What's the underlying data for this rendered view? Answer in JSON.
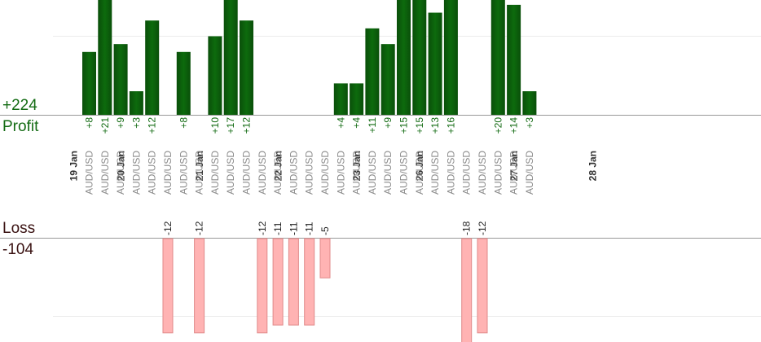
{
  "summary": {
    "profit_total": "+224",
    "profit_label": "Profit",
    "loss_label": "Loss",
    "loss_total": "-104"
  },
  "colors": {
    "profit_bar": "#0d6b0d",
    "profit_bar_dark": "#0a4f0a",
    "profit_text": "#136b13",
    "loss_bar": "#ffb3b3",
    "loss_bar_edge": "#e08a8a",
    "loss_text": "#222222",
    "date_text": "#333333",
    "pair_text": "#8a8a8a",
    "axis": "#999999",
    "grid": "#ececec"
  },
  "chart_data": {
    "type": "bar",
    "note_units": "pips",
    "dates": [
      {
        "label": "19 Jan",
        "slot": 0
      },
      {
        "label": "20 Jan",
        "slot": 3
      },
      {
        "label": "21 Jan",
        "slot": 8
      },
      {
        "label": "22 Jan",
        "slot": 13
      },
      {
        "label": "23 Jan",
        "slot": 18
      },
      {
        "label": "26 Jan",
        "slot": 22
      },
      {
        "label": "27 Jan",
        "slot": 28
      },
      {
        "label": "28 Jan",
        "slot": 33
      }
    ],
    "trades": [
      {
        "pair": "AUD/USD",
        "value": 8
      },
      {
        "pair": "AUD/USD",
        "value": 21
      },
      {
        "pair": "AUD/USD",
        "value": 9
      },
      {
        "pair": "AUD/USD",
        "value": 3
      },
      {
        "pair": "AUD/USD",
        "value": 12
      },
      {
        "pair": "AUD/USD",
        "value": -12
      },
      {
        "pair": "AUD/USD",
        "value": 8
      },
      {
        "pair": "AUD/USD",
        "value": -12
      },
      {
        "pair": "AUD/USD",
        "value": 10
      },
      {
        "pair": "AUD/USD",
        "value": 17
      },
      {
        "pair": "AUD/USD",
        "value": 12
      },
      {
        "pair": "AUD/USD",
        "value": -12
      },
      {
        "pair": "AUD/USD",
        "value": -11
      },
      {
        "pair": "AUD/USD",
        "value": -11
      },
      {
        "pair": "AUD/USD",
        "value": -11
      },
      {
        "pair": "AUD/USD",
        "value": -5
      },
      {
        "pair": "AUD/USD",
        "value": 4
      },
      {
        "pair": "AUD/USD",
        "value": 4
      },
      {
        "pair": "AUD/USD",
        "value": 11
      },
      {
        "pair": "AUD/USD",
        "value": 9
      },
      {
        "pair": "AUD/USD",
        "value": 15
      },
      {
        "pair": "AUD/USD",
        "value": 15
      },
      {
        "pair": "AUD/USD",
        "value": 13
      },
      {
        "pair": "AUD/USD",
        "value": 16
      },
      {
        "pair": "AUD/USD",
        "value": -18
      },
      {
        "pair": "AUD/USD",
        "value": -12
      },
      {
        "pair": "AUD/USD",
        "value": 20
      },
      {
        "pair": "AUD/USD",
        "value": 14
      },
      {
        "pair": "AUD/USD",
        "value": 3
      }
    ],
    "profit_axis_max": 15,
    "loss_axis_max": 15,
    "gridlines": [
      10
    ]
  }
}
